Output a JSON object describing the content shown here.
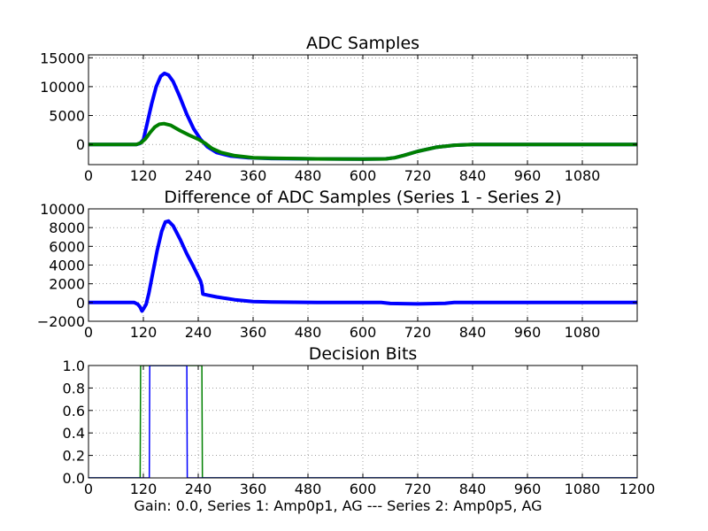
{
  "figure": {
    "caption": "Gain: 0.0, Series 1: Amp0p1, AG --- Series 2: Amp0p5, AG"
  },
  "colors": {
    "series1": "#0000ff",
    "series2": "#008000"
  },
  "chart_data": [
    {
      "type": "line",
      "title": "ADC Samples",
      "xlim": [
        0,
        1200
      ],
      "ylim": [
        -3500,
        15500
      ],
      "grid": true,
      "xticks": [
        0,
        120,
        240,
        360,
        480,
        600,
        720,
        840,
        960,
        1080
      ],
      "xtick_labels": [
        "0",
        "120",
        "240",
        "360",
        "480",
        "600",
        "720",
        "840",
        "960",
        "1080"
      ],
      "yticks": [
        0,
        5000,
        10000,
        15000
      ],
      "ytick_labels": [
        "0",
        "5000",
        "10000",
        "15000"
      ],
      "series": [
        {
          "color": "#0000ff",
          "width": 4,
          "points": [
            [
              0,
              0
            ],
            [
              105,
              0
            ],
            [
              112,
              150
            ],
            [
              120,
              800
            ],
            [
              128,
              3500
            ],
            [
              138,
              7000
            ],
            [
              148,
              10000
            ],
            [
              158,
              11800
            ],
            [
              166,
              12300
            ],
            [
              175,
              12000
            ],
            [
              185,
              10900
            ],
            [
              200,
              8200
            ],
            [
              215,
              5200
            ],
            [
              230,
              2700
            ],
            [
              245,
              900
            ],
            [
              260,
              -400
            ],
            [
              280,
              -1400
            ],
            [
              310,
              -2000
            ],
            [
              350,
              -2300
            ],
            [
              400,
              -2450
            ],
            [
              500,
              -2500
            ],
            [
              600,
              -2550
            ],
            [
              650,
              -2500
            ],
            [
              670,
              -2300
            ],
            [
              690,
              -1900
            ],
            [
              720,
              -1200
            ],
            [
              760,
              -500
            ],
            [
              800,
              -150
            ],
            [
              840,
              0
            ],
            [
              1200,
              0
            ]
          ]
        },
        {
          "color": "#008000",
          "width": 4,
          "points": [
            [
              0,
              0
            ],
            [
              105,
              0
            ],
            [
              115,
              300
            ],
            [
              125,
              1000
            ],
            [
              135,
              2100
            ],
            [
              145,
              3000
            ],
            [
              155,
              3500
            ],
            [
              165,
              3600
            ],
            [
              180,
              3300
            ],
            [
              200,
              2400
            ],
            [
              220,
              1600
            ],
            [
              240,
              900
            ],
            [
              255,
              200
            ],
            [
              270,
              -700
            ],
            [
              290,
              -1400
            ],
            [
              320,
              -1950
            ],
            [
              360,
              -2300
            ],
            [
              400,
              -2400
            ],
            [
              500,
              -2500
            ],
            [
              600,
              -2550
            ],
            [
              650,
              -2500
            ],
            [
              670,
              -2300
            ],
            [
              690,
              -1900
            ],
            [
              720,
              -1200
            ],
            [
              760,
              -500
            ],
            [
              800,
              -150
            ],
            [
              840,
              0
            ],
            [
              1200,
              0
            ]
          ]
        }
      ]
    },
    {
      "type": "line",
      "title": "Difference of ADC Samples (Series 1 - Series 2)",
      "xlim": [
        0,
        1200
      ],
      "ylim": [
        -2000,
        10000
      ],
      "grid": true,
      "xticks": [
        0,
        120,
        240,
        360,
        480,
        600,
        720,
        840,
        960,
        1080
      ],
      "xtick_labels": [
        "0",
        "120",
        "240",
        "360",
        "480",
        "600",
        "720",
        "840",
        "960",
        "1080"
      ],
      "yticks": [
        -2000,
        0,
        2000,
        4000,
        6000,
        8000,
        10000
      ],
      "ytick_labels": [
        "−2000",
        "0",
        "2000",
        "4000",
        "6000",
        "8000",
        "10000"
      ],
      "series": [
        {
          "color": "#0000ff",
          "width": 4,
          "points": [
            [
              0,
              0
            ],
            [
              100,
              0
            ],
            [
              108,
              -200
            ],
            [
              113,
              -500
            ],
            [
              117,
              -900
            ],
            [
              120,
              -700
            ],
            [
              126,
              -200
            ],
            [
              132,
              1000
            ],
            [
              140,
              3000
            ],
            [
              150,
              5500
            ],
            [
              160,
              7600
            ],
            [
              168,
              8600
            ],
            [
              175,
              8700
            ],
            [
              185,
              8200
            ],
            [
              200,
              6800
            ],
            [
              215,
              5200
            ],
            [
              230,
              3800
            ],
            [
              245,
              2300
            ],
            [
              248,
              1800
            ],
            [
              250,
              900
            ],
            [
              260,
              800
            ],
            [
              280,
              600
            ],
            [
              320,
              300
            ],
            [
              360,
              100
            ],
            [
              400,
              50
            ],
            [
              500,
              0
            ],
            [
              640,
              0
            ],
            [
              660,
              -100
            ],
            [
              720,
              -150
            ],
            [
              780,
              -80
            ],
            [
              800,
              0
            ],
            [
              1200,
              0
            ]
          ]
        }
      ]
    },
    {
      "type": "line",
      "title": "Decision Bits",
      "xlim": [
        0,
        1200
      ],
      "ylim": [
        0,
        1
      ],
      "grid": true,
      "xticks": [
        0,
        120,
        240,
        360,
        480,
        600,
        720,
        840,
        960,
        1080,
        1200
      ],
      "xtick_labels": [
        "0",
        "120",
        "240",
        "360",
        "480",
        "600",
        "720",
        "840",
        "960",
        "1080",
        "1200"
      ],
      "yticks": [
        0,
        0.2,
        0.4,
        0.6,
        0.8,
        1.0
      ],
      "ytick_labels": [
        "0.0",
        "0.2",
        "0.4",
        "0.6",
        "0.8",
        "1.0"
      ],
      "series": [
        {
          "color": "#008000",
          "width": 1.5,
          "points": [
            [
              0,
              0
            ],
            [
              113,
              0
            ],
            [
              114,
              1
            ],
            [
              248,
              1
            ],
            [
              249,
              0
            ],
            [
              1200,
              0
            ]
          ]
        },
        {
          "color": "#0000ff",
          "width": 1.5,
          "points": [
            [
              0,
              0
            ],
            [
              133,
              0
            ],
            [
              134,
              1
            ],
            [
              215,
              1
            ],
            [
              216,
              0
            ],
            [
              1200,
              0
            ]
          ]
        }
      ]
    }
  ]
}
